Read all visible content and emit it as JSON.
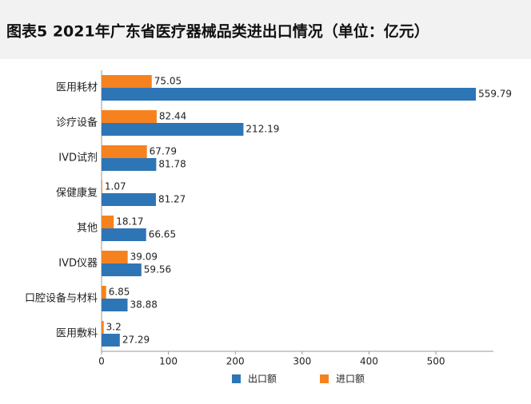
{
  "chart_data": {
    "type": "hbar",
    "title": "图表5 2021年广东省医疗器械品类进出口情况（单位：亿元）",
    "categories": [
      "医用耗材",
      "诊疗设备",
      "IVD试剂",
      "保健康复",
      "其他",
      "IVD仪器",
      "口腔设备与材料",
      "医用敷料"
    ],
    "series": [
      {
        "name": "出口额",
        "color": "#2e75b6",
        "values": [
          559.79,
          212.19,
          81.78,
          81.27,
          66.65,
          59.56,
          38.88,
          27.29
        ]
      },
      {
        "name": "进口额",
        "color": "#f5821f",
        "values": [
          75.05,
          82.44,
          67.79,
          1.07,
          18.17,
          39.09,
          6.85,
          3.2
        ]
      }
    ],
    "xlim": [
      0,
      586
    ],
    "xticks": [
      0,
      100,
      200,
      300,
      400,
      500
    ],
    "legend": "bottom"
  }
}
